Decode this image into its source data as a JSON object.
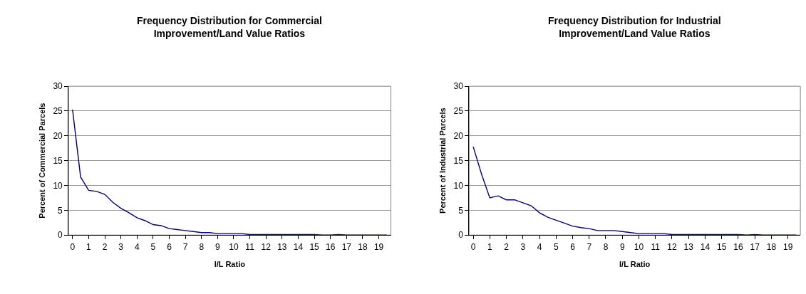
{
  "chart_data": [
    {
      "type": "line",
      "title": "Frequency Distribution for Commercial Improvement/Land Value Ratios",
      "xlabel": "I/L Ratio",
      "ylabel": "Percent of Commercial Parcels",
      "x": [
        0,
        0.5,
        1,
        1.5,
        2,
        2.5,
        3,
        3.5,
        4,
        4.5,
        5,
        5.5,
        6,
        6.5,
        7,
        7.5,
        8,
        8.5,
        9,
        9.5,
        10,
        10.5,
        11,
        11.5,
        12,
        12.5,
        13,
        13.5,
        14,
        14.5,
        15,
        15.5,
        16,
        16.5,
        17,
        17.5,
        18,
        18.5,
        19,
        19.5
      ],
      "series": [
        {
          "color": "#000080",
          "values": [
            25.3,
            11.7,
            9.0,
            8.8,
            8.2,
            6.6,
            5.4,
            4.5,
            3.5,
            2.9,
            2.1,
            1.9,
            1.3,
            1.1,
            0.9,
            0.7,
            0.5,
            0.5,
            0.3,
            0.3,
            0.3,
            0.3,
            0.1,
            0.1,
            0.1,
            0.1,
            0.1,
            0.1,
            0.1,
            0.1,
            0.1,
            0,
            0,
            0.1,
            0,
            0,
            0,
            0,
            0,
            0
          ]
        }
      ],
      "xlim": [
        -0.25,
        19.75
      ],
      "xticks": [
        0,
        1,
        2,
        3,
        4,
        5,
        6,
        7,
        8,
        9,
        10,
        11,
        12,
        13,
        14,
        15,
        16,
        17,
        18,
        19
      ],
      "ylim": [
        0,
        30
      ],
      "yticks": [
        0,
        5,
        10,
        15,
        20,
        25,
        30
      ],
      "grid": "y"
    },
    {
      "type": "line",
      "title": "Frequency Distribution for Industrial Improvement/Land Value Ratios",
      "xlabel": "I/L Ratio",
      "ylabel": "Percent of Industrial Parcels",
      "x": [
        0,
        0.5,
        1,
        1.5,
        2,
        2.5,
        3,
        3.5,
        4,
        4.5,
        5,
        5.5,
        6,
        6.5,
        7,
        7.5,
        8,
        8.5,
        9,
        9.5,
        10,
        10.5,
        11,
        11.5,
        12,
        12.5,
        13,
        13.5,
        14,
        14.5,
        15,
        15.5,
        16,
        16.5,
        17,
        17.5,
        18,
        18.5,
        19,
        19.5
      ],
      "series": [
        {
          "color": "#000080",
          "values": [
            17.8,
            12.3,
            7.5,
            7.9,
            7.1,
            7.1,
            6.5,
            5.9,
            4.5,
            3.6,
            3.0,
            2.4,
            1.8,
            1.5,
            1.3,
            0.9,
            0.9,
            0.9,
            0.7,
            0.5,
            0.3,
            0.3,
            0.3,
            0.3,
            0.1,
            0.1,
            0.1,
            0.1,
            0.1,
            0.1,
            0.1,
            0.1,
            0.1,
            0,
            0.1,
            0,
            0,
            0,
            0,
            0
          ]
        }
      ],
      "xlim": [
        -0.25,
        19.75
      ],
      "xticks": [
        0,
        1,
        2,
        3,
        4,
        5,
        6,
        7,
        8,
        9,
        10,
        11,
        12,
        13,
        14,
        15,
        16,
        17,
        18,
        19
      ],
      "ylim": [
        0,
        30
      ],
      "yticks": [
        0,
        5,
        10,
        15,
        20,
        25,
        30
      ],
      "grid": "y"
    }
  ]
}
